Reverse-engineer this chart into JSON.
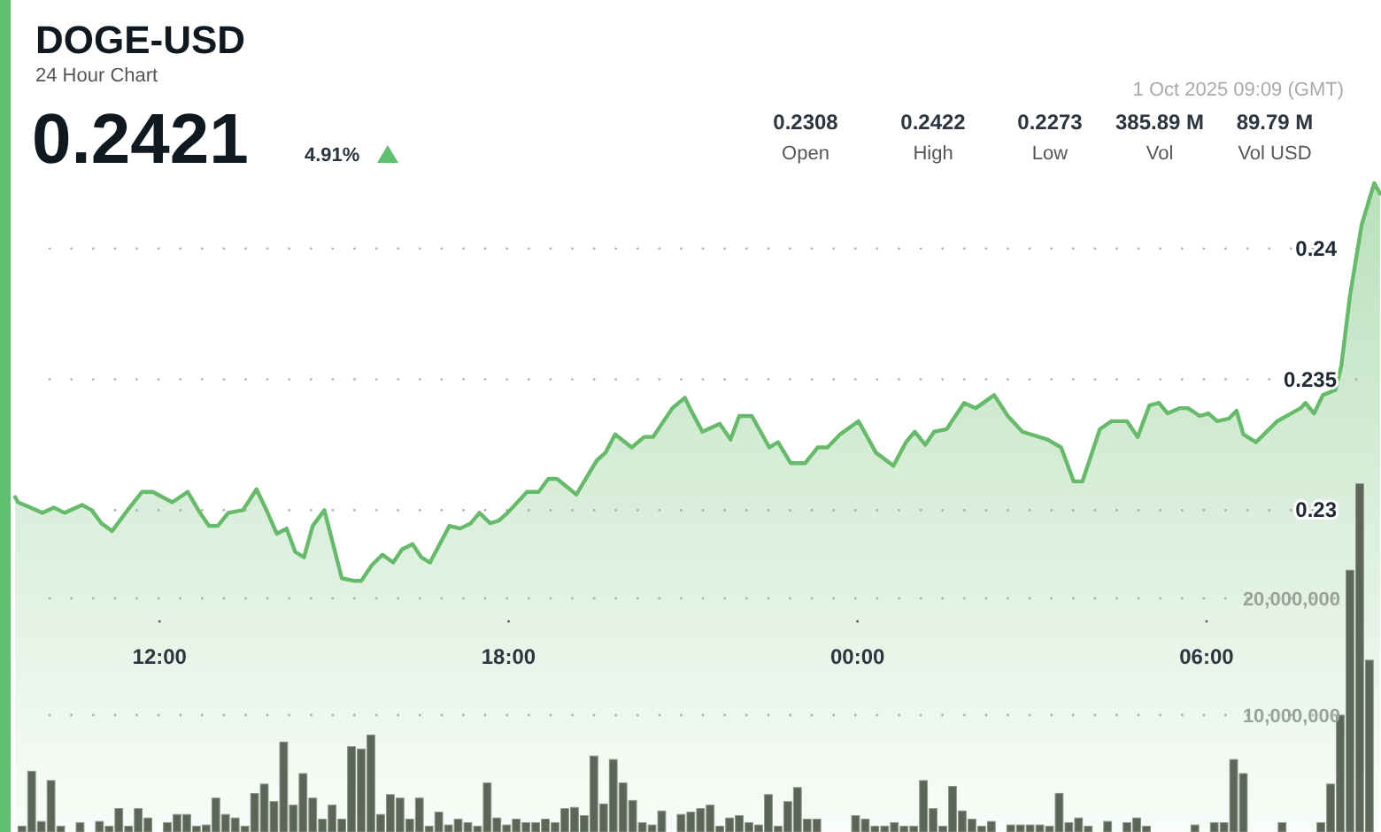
{
  "chart_data": {
    "type": "area",
    "title": "DOGE-USD",
    "subtitle": "24 Hour Chart",
    "annotations": [
      "0.2421",
      "4.91%",
      "1 Oct 2025 09:09 (GMT)",
      "0.2308",
      "Open",
      "0.2422",
      "High",
      "0.2273",
      "Low",
      "385.89 M",
      "Vol",
      "89.79 M",
      "Vol USD"
    ],
    "xlim": [
      "2025-09-30T09:30",
      "2025-10-01T09:00"
    ],
    "xticks": [
      {
        "value": "2025-09-30T12:00",
        "label": "12:00"
      },
      {
        "value": "2025-09-30T18:00",
        "label": "18:00"
      },
      {
        "value": "2025-10-01T00:00",
        "label": "00:00"
      },
      {
        "value": "2025-10-01T06:00",
        "label": "06:00"
      }
    ],
    "ylim": [
      0.2177,
      0.2495
    ],
    "yticks": [
      0.23,
      0.235,
      0.24
    ],
    "y2lim": [
      0,
      71200000
    ],
    "y2ticks": [
      {
        "value": 10000000,
        "label": "10,000,000"
      },
      {
        "value": 20000000,
        "label": "20,000,000"
      }
    ],
    "grid": "y",
    "series": [
      {
        "color": "#66bb6a",
        "x": [
          "2025-09-30T09:31",
          "2025-09-30T09:34",
          "2025-09-30T09:47",
          "2025-09-30T09:59",
          "2025-09-30T10:11",
          "2025-09-30T10:22",
          "2025-09-30T10:40",
          "2025-09-30T10:50",
          "2025-09-30T11:00",
          "2025-09-30T11:11",
          "2025-09-30T11:27",
          "2025-09-30T11:42",
          "2025-09-30T11:53",
          "2025-09-30T12:13",
          "2025-09-30T12:29",
          "2025-09-30T12:40",
          "2025-09-30T12:51",
          "2025-09-30T13:00",
          "2025-09-30T13:11",
          "2025-09-30T13:26",
          "2025-09-30T13:40",
          "2025-09-30T13:49",
          "2025-09-30T14:01",
          "2025-09-30T14:11",
          "2025-09-30T14:20",
          "2025-09-30T14:29",
          "2025-09-30T14:38",
          "2025-09-30T14:50",
          "2025-09-30T15:08",
          "2025-09-30T15:20",
          "2025-09-30T15:28",
          "2025-09-30T15:39",
          "2025-09-30T15:50",
          "2025-09-30T16:01",
          "2025-09-30T16:10",
          "2025-09-30T16:21",
          "2025-09-30T16:30",
          "2025-09-30T16:39",
          "2025-09-30T16:59",
          "2025-09-30T17:10",
          "2025-09-30T17:21",
          "2025-09-30T17:30",
          "2025-09-30T17:41",
          "2025-09-30T17:50",
          "2025-09-30T17:59",
          "2025-09-30T18:19",
          "2025-09-30T18:31",
          "2025-09-30T18:41",
          "2025-09-30T18:50",
          "2025-09-30T19:10",
          "2025-09-30T19:31",
          "2025-09-30T19:40",
          "2025-09-30T19:50",
          "2025-09-30T20:07",
          "2025-09-30T20:20",
          "2025-09-30T20:29",
          "2025-09-30T20:49",
          "2025-09-30T21:02",
          "2025-09-30T21:07",
          "2025-09-30T21:20",
          "2025-09-30T21:38",
          "2025-09-30T21:49",
          "2025-09-30T21:58",
          "2025-09-30T22:11",
          "2025-09-30T22:29",
          "2025-09-30T22:38",
          "2025-09-30T22:51",
          "2025-09-30T23:06",
          "2025-09-30T23:19",
          "2025-09-30T23:29",
          "2025-09-30T23:42",
          "2025-10-01T00:01",
          "2025-10-01T00:19",
          "2025-10-01T00:37",
          "2025-10-01T00:50",
          "2025-10-01T00:59",
          "2025-10-01T01:10",
          "2025-10-01T01:19",
          "2025-10-01T01:32",
          "2025-10-01T01:50",
          "2025-10-01T02:02",
          "2025-10-01T02:21",
          "2025-10-01T02:35",
          "2025-10-01T02:50",
          "2025-10-01T03:16",
          "2025-10-01T03:30",
          "2025-10-01T03:43",
          "2025-10-01T03:52",
          "2025-10-01T04:10",
          "2025-10-01T04:22",
          "2025-10-01T04:38",
          "2025-10-01T04:49",
          "2025-10-01T05:01",
          "2025-10-01T05:11",
          "2025-10-01T05:20",
          "2025-10-01T05:32",
          "2025-10-01T05:41",
          "2025-10-01T05:53",
          "2025-10-01T06:02",
          "2025-10-01T06:11",
          "2025-10-01T06:23",
          "2025-10-01T06:31",
          "2025-10-01T06:38",
          "2025-10-01T06:51",
          "2025-10-01T07:13",
          "2025-10-01T07:37",
          "2025-10-01T07:42",
          "2025-10-01T07:51",
          "2025-10-01T08:00",
          "2025-10-01T08:13",
          "2025-10-01T08:19",
          "2025-10-01T08:28",
          "2025-10-01T08:40",
          "2025-10-01T08:53",
          "2025-10-01T08:59"
        ],
        "values": [
          0.2305,
          0.2303,
          0.2301,
          0.2299,
          0.2301,
          0.2299,
          0.2302,
          0.23,
          0.2295,
          0.2292,
          0.23,
          0.2307,
          0.2307,
          0.2303,
          0.2307,
          0.23,
          0.2294,
          0.2294,
          0.2299,
          0.23,
          0.2308,
          0.2301,
          0.2291,
          0.2293,
          0.2284,
          0.2282,
          0.2294,
          0.23,
          0.2274,
          0.2273,
          0.2273,
          0.2279,
          0.2283,
          0.228,
          0.2285,
          0.2287,
          0.2282,
          0.228,
          0.2294,
          0.2293,
          0.2295,
          0.2299,
          0.2295,
          0.2296,
          0.2299,
          0.2307,
          0.2307,
          0.2312,
          0.2312,
          0.2306,
          0.2319,
          0.2322,
          0.2329,
          0.2324,
          0.2328,
          0.2328,
          0.2339,
          0.2343,
          0.2339,
          0.233,
          0.2333,
          0.2327,
          0.2336,
          0.2336,
          0.2324,
          0.2326,
          0.2318,
          0.2318,
          0.2324,
          0.2324,
          0.2329,
          0.2334,
          0.2322,
          0.2317,
          0.2326,
          0.233,
          0.2325,
          0.233,
          0.2331,
          0.2341,
          0.2339,
          0.2344,
          0.2336,
          0.233,
          0.2327,
          0.2324,
          0.2311,
          0.2311,
          0.2331,
          0.2334,
          0.2334,
          0.2328,
          0.234,
          0.2341,
          0.2337,
          0.2339,
          0.2339,
          0.2336,
          0.2337,
          0.2334,
          0.2335,
          0.2338,
          0.2329,
          0.2326,
          0.2334,
          0.2339,
          0.2341,
          0.2337,
          0.2344,
          0.2346,
          0.2355,
          0.2382,
          0.2409,
          0.2425,
          0.2421
        ]
      },
      {
        "type": "bar",
        "axis": "y2",
        "color": "#5b6659",
        "x": [
          "2025-09-30T09:38",
          "2025-09-30T09:48",
          "2025-09-30T09:58",
          "2025-09-30T10:08",
          "2025-09-30T10:18",
          "2025-09-30T10:28",
          "2025-09-30T10:38",
          "2025-09-30T10:48",
          "2025-09-30T10:58",
          "2025-09-30T11:08",
          "2025-09-30T11:18",
          "2025-09-30T11:28",
          "2025-09-30T11:38",
          "2025-09-30T11:48",
          "2025-09-30T11:58",
          "2025-09-30T12:08",
          "2025-09-30T12:18",
          "2025-09-30T12:28",
          "2025-09-30T12:38",
          "2025-09-30T12:48",
          "2025-09-30T12:58",
          "2025-09-30T13:08",
          "2025-09-30T13:18",
          "2025-09-30T13:28",
          "2025-09-30T13:38",
          "2025-09-30T13:48",
          "2025-09-30T13:58",
          "2025-09-30T14:08",
          "2025-09-30T14:18",
          "2025-09-30T14:28",
          "2025-09-30T14:38",
          "2025-09-30T14:48",
          "2025-09-30T14:58",
          "2025-09-30T15:08",
          "2025-09-30T15:18",
          "2025-09-30T15:28",
          "2025-09-30T15:38",
          "2025-09-30T15:48",
          "2025-09-30T15:58",
          "2025-09-30T16:08",
          "2025-09-30T16:18",
          "2025-09-30T16:28",
          "2025-09-30T16:38",
          "2025-09-30T16:48",
          "2025-09-30T16:58",
          "2025-09-30T17:08",
          "2025-09-30T17:18",
          "2025-09-30T17:28",
          "2025-09-30T17:38",
          "2025-09-30T17:48",
          "2025-09-30T17:58",
          "2025-09-30T18:08",
          "2025-09-30T18:18",
          "2025-09-30T18:28",
          "2025-09-30T18:38",
          "2025-09-30T18:48",
          "2025-09-30T18:58",
          "2025-09-30T19:08",
          "2025-09-30T19:18",
          "2025-09-30T19:28",
          "2025-09-30T19:38",
          "2025-09-30T19:48",
          "2025-09-30T19:58",
          "2025-09-30T20:08",
          "2025-09-30T20:18",
          "2025-09-30T20:28",
          "2025-09-30T20:38",
          "2025-09-30T20:48",
          "2025-09-30T20:58",
          "2025-09-30T21:08",
          "2025-09-30T21:18",
          "2025-09-30T21:28",
          "2025-09-30T21:38",
          "2025-09-30T21:48",
          "2025-09-30T21:58",
          "2025-09-30T22:08",
          "2025-09-30T22:18",
          "2025-09-30T22:28",
          "2025-09-30T22:38",
          "2025-09-30T22:48",
          "2025-09-30T22:58",
          "2025-09-30T23:08",
          "2025-09-30T23:18",
          "2025-09-30T23:28",
          "2025-09-30T23:38",
          "2025-09-30T23:48",
          "2025-09-30T23:58",
          "2025-10-01T00:08",
          "2025-10-01T00:18",
          "2025-10-01T00:28",
          "2025-10-01T00:38",
          "2025-10-01T00:48",
          "2025-10-01T00:58",
          "2025-10-01T01:08",
          "2025-10-01T01:18",
          "2025-10-01T01:28",
          "2025-10-01T01:38",
          "2025-10-01T01:48",
          "2025-10-01T01:58",
          "2025-10-01T02:08",
          "2025-10-01T02:18",
          "2025-10-01T02:28",
          "2025-10-01T02:38",
          "2025-10-01T02:48",
          "2025-10-01T02:58",
          "2025-10-01T03:08",
          "2025-10-01T03:18",
          "2025-10-01T03:28",
          "2025-10-01T03:38",
          "2025-10-01T03:48",
          "2025-10-01T03:58",
          "2025-10-01T04:08",
          "2025-10-01T04:18",
          "2025-10-01T04:28",
          "2025-10-01T04:38",
          "2025-10-01T04:48",
          "2025-10-01T04:58",
          "2025-10-01T05:08",
          "2025-10-01T05:18",
          "2025-10-01T05:28",
          "2025-10-01T05:38",
          "2025-10-01T05:48",
          "2025-10-01T05:58",
          "2025-10-01T06:08",
          "2025-10-01T06:18",
          "2025-10-01T06:28",
          "2025-10-01T06:38",
          "2025-10-01T06:48",
          "2025-10-01T06:58",
          "2025-10-01T07:08",
          "2025-10-01T07:18",
          "2025-10-01T07:28",
          "2025-10-01T07:38",
          "2025-10-01T07:48",
          "2025-10-01T07:58",
          "2025-10-01T08:08",
          "2025-10-01T08:18",
          "2025-10-01T08:28",
          "2025-10-01T08:38",
          "2025-10-01T08:48"
        ],
        "values": [
          500000,
          5200000,
          900000,
          4400000,
          500000,
          0,
          800000,
          0,
          900000,
          500000,
          2000000,
          500000,
          2000000,
          1200000,
          0,
          800000,
          1500000,
          1500000,
          500000,
          600000,
          2900000,
          1500000,
          1200000,
          500000,
          3300000,
          4100000,
          2600000,
          7700000,
          2300000,
          5000000,
          2900000,
          1100000,
          2300000,
          1100000,
          7300000,
          7100000,
          8300000,
          1500000,
          3200000,
          2900000,
          1100000,
          2900000,
          500000,
          1700000,
          600000,
          1100000,
          800000,
          500000,
          4200000,
          1200000,
          600000,
          1100000,
          800000,
          800000,
          1100000,
          800000,
          2000000,
          2100000,
          1400000,
          6500000,
          2400000,
          6200000,
          4200000,
          2700000,
          800000,
          600000,
          1800000,
          0,
          1500000,
          1700000,
          2000000,
          2300000,
          500000,
          1200000,
          1400000,
          800000,
          600000,
          3200000,
          500000,
          2600000,
          3800000,
          1100000,
          1100000,
          0,
          0,
          0,
          1400000,
          1100000,
          500000,
          500000,
          800000,
          500000,
          500000,
          4400000,
          2000000,
          500000,
          3900000,
          1800000,
          1100000,
          500000,
          900000,
          0,
          600000,
          600000,
          600000,
          600000,
          500000,
          3300000,
          800000,
          1200000,
          500000,
          0,
          900000,
          0,
          800000,
          1200000,
          500000,
          0,
          0,
          0,
          0,
          600000,
          0,
          800000,
          800000,
          6200000,
          5000000,
          0,
          0,
          0,
          800000,
          0,
          0,
          0,
          800000,
          4100000,
          10000000,
          22400000,
          29800000,
          14700000
        ]
      }
    ]
  }
}
